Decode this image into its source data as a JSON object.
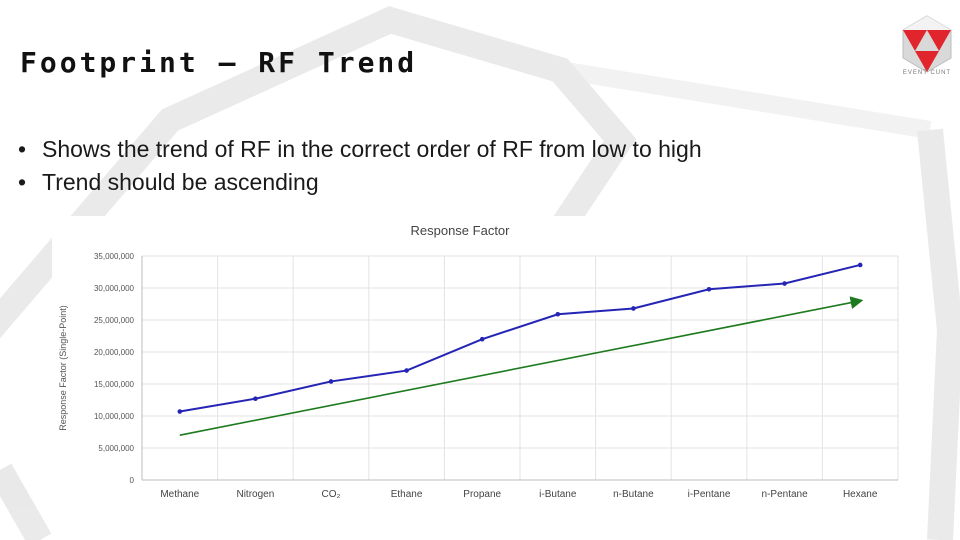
{
  "slide": {
    "title": "Footprint – RF Trend",
    "logo_text": "EVENT CUNT",
    "bullets": [
      "Shows the trend of RF in the correct order of RF from low to high",
      "Trend should be ascending"
    ]
  },
  "chart_data": {
    "type": "line",
    "title": "Response Factor",
    "xlabel": "",
    "ylabel": "Response Factor (Single-Point)",
    "categories": [
      "Methane",
      "Nitrogen",
      "CO₂",
      "Ethane",
      "Propane",
      "i-Butane",
      "n-Butane",
      "i-Pentane",
      "n-Pentane",
      "Hexane"
    ],
    "series": [
      {
        "values": [
          10700000,
          12700000,
          15400000,
          17100000,
          22000000,
          25900000,
          26800000,
          29800000,
          30700000,
          33600000
        ],
        "color": "#2525b5",
        "markers": true
      }
    ],
    "trend_arrow": {
      "start": 7000000,
      "end": 28000000,
      "color": "#1e7a1e"
    },
    "ylim": [
      0,
      35000000
    ],
    "yticks": [
      0,
      5000000,
      10000000,
      15000000,
      20000000,
      25000000,
      30000000,
      35000000
    ],
    "ytick_labels": [
      "0",
      "5,000,000",
      "10,000,000",
      "15,000,000",
      "20,000,000",
      "25,000,000",
      "30,000,000",
      "35,000,000"
    ],
    "grid": true,
    "legend": "none"
  }
}
